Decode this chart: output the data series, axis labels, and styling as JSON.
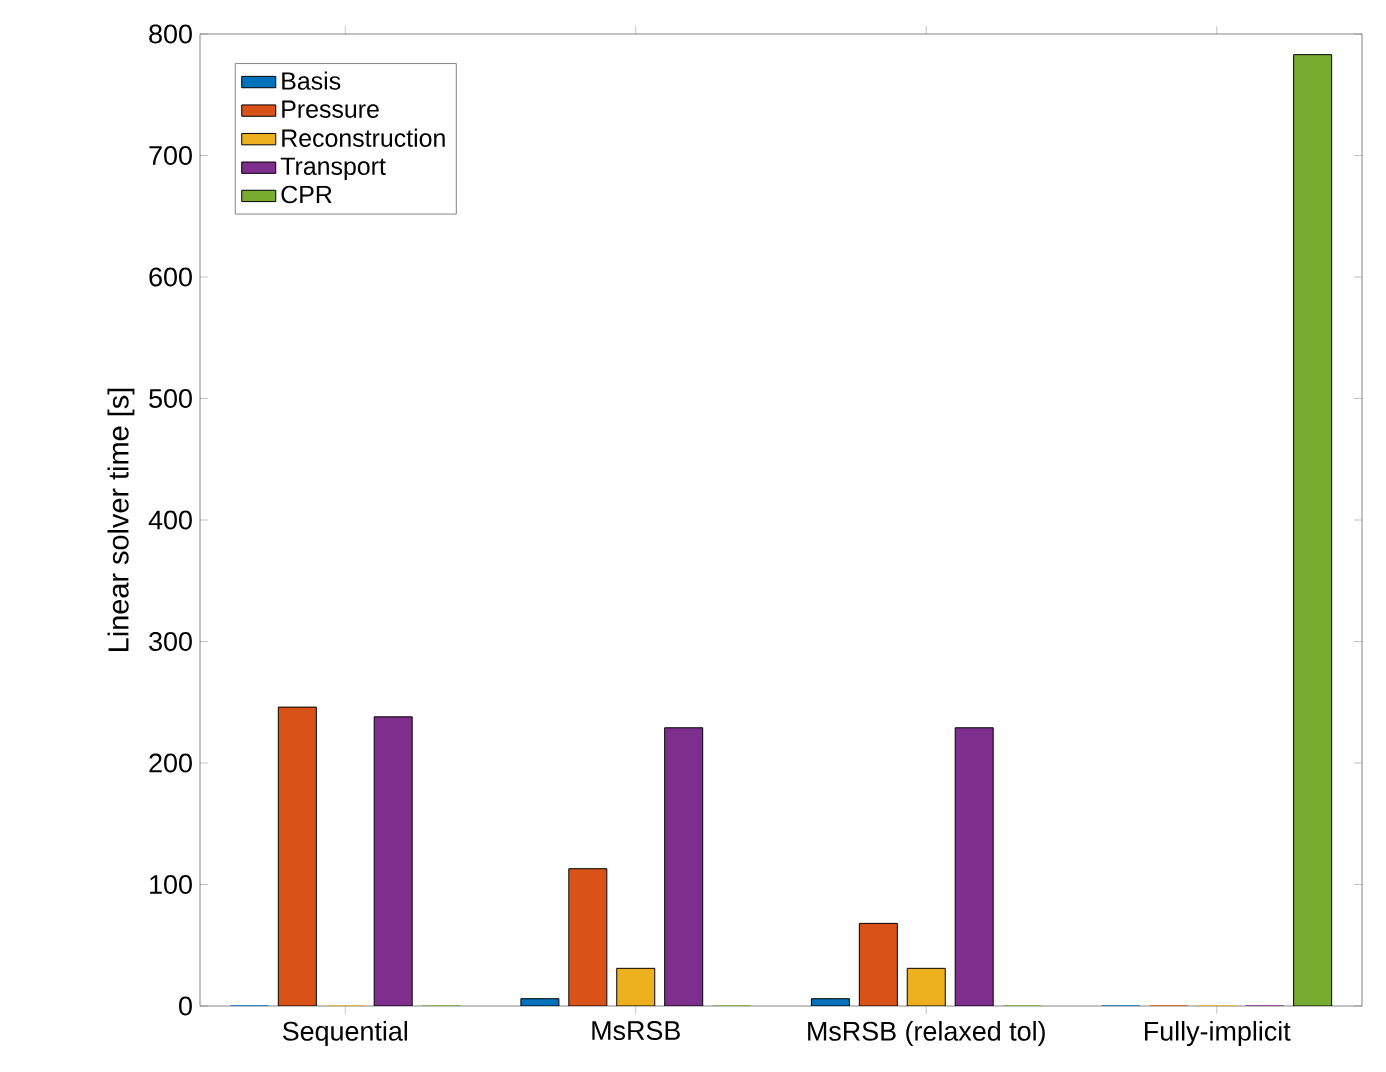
{
  "chart_data": {
    "type": "bar",
    "ylabel": "Linear solver time [s]",
    "categories": [
      "Sequential",
      "MsRSB",
      "MsRSB (relaxed tol)",
      "Fully-implicit"
    ],
    "series": [
      {
        "name": "Basis",
        "color": "#0072bd",
        "values": [
          0,
          6,
          6,
          0
        ]
      },
      {
        "name": "Pressure",
        "color": "#d95319",
        "values": [
          246,
          113,
          68,
          0
        ]
      },
      {
        "name": "Reconstruction",
        "color": "#edb120",
        "values": [
          0,
          31,
          31,
          0
        ]
      },
      {
        "name": "Transport",
        "color": "#7e2f8e",
        "values": [
          238,
          229,
          229,
          0
        ]
      },
      {
        "name": "CPR",
        "color": "#77ac30",
        "values": [
          0,
          0,
          0,
          783
        ]
      }
    ],
    "ylim": [
      0,
      800
    ],
    "yticks": [
      0,
      100,
      200,
      300,
      400,
      500,
      600,
      700,
      800
    ],
    "legend": "top left",
    "grid": false
  }
}
